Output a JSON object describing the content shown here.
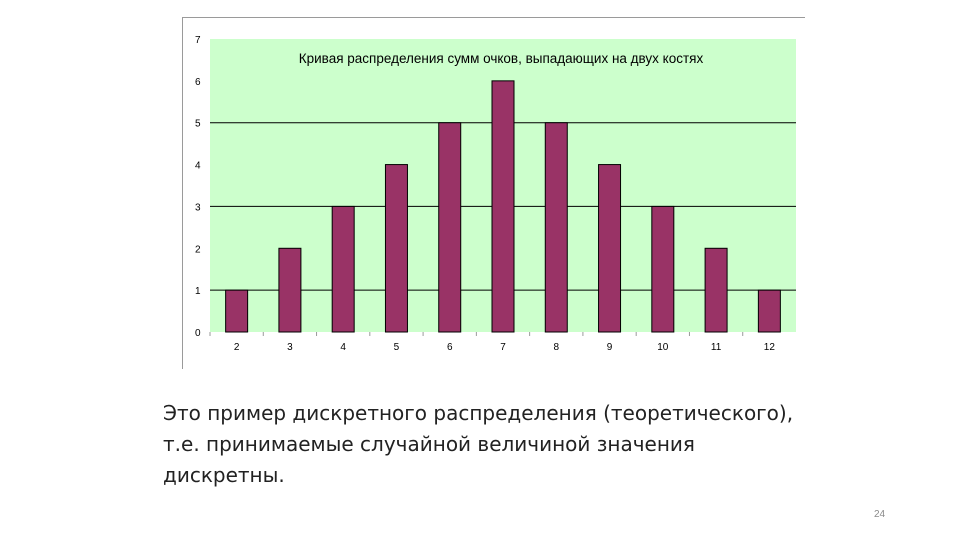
{
  "chart_data": {
    "type": "bar",
    "title": "Кривая распределения  сумм очков, выпадающих  на двух костях",
    "xlabel": "",
    "ylabel": "",
    "categories": [
      "2",
      "3",
      "4",
      "5",
      "6",
      "7",
      "8",
      "9",
      "10",
      "11",
      "12"
    ],
    "values": [
      1,
      2,
      3,
      4,
      5,
      6,
      5,
      4,
      3,
      2,
      1
    ],
    "ylim": [
      0,
      7
    ],
    "yticks": [
      "0",
      "1",
      "2",
      "3",
      "4",
      "5",
      "6",
      "7"
    ],
    "grid": true,
    "legend": "none",
    "colors": {
      "plot_background": "#ccffcc",
      "bar_fill": "#993366",
      "bar_stroke": "#000000",
      "gridline": "#000000"
    }
  },
  "caption": "Это пример дискретного распределения (теоретического), т.е. принимаемые случайной величиной значения дискретны.",
  "page_number": "24"
}
